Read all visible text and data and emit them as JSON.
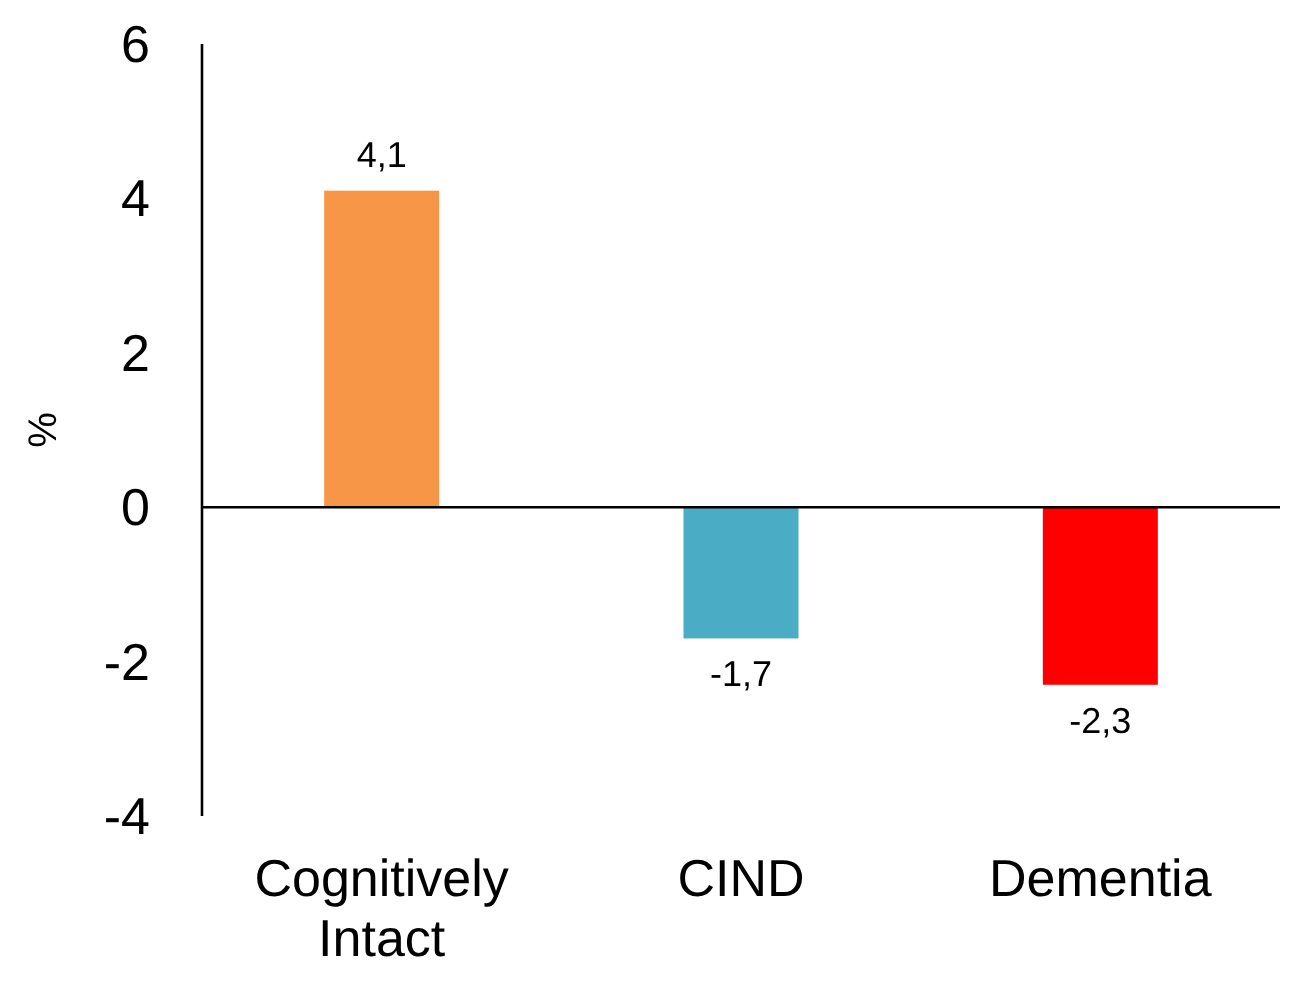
{
  "chart_data": {
    "type": "bar",
    "ylabel": "%",
    "categories": [
      "Cognitively Intact",
      "CIND",
      "Dementia"
    ],
    "values": [
      4.1,
      -1.7,
      -2.3
    ],
    "colors": [
      "#f79646",
      "#4bacc6",
      "#ff0000"
    ],
    "value_labels": [
      "4,1",
      "-1,7",
      "-2,3"
    ],
    "ylim": [
      -4,
      6
    ],
    "yticks": [
      -4,
      -2,
      0,
      2,
      4,
      6
    ]
  }
}
